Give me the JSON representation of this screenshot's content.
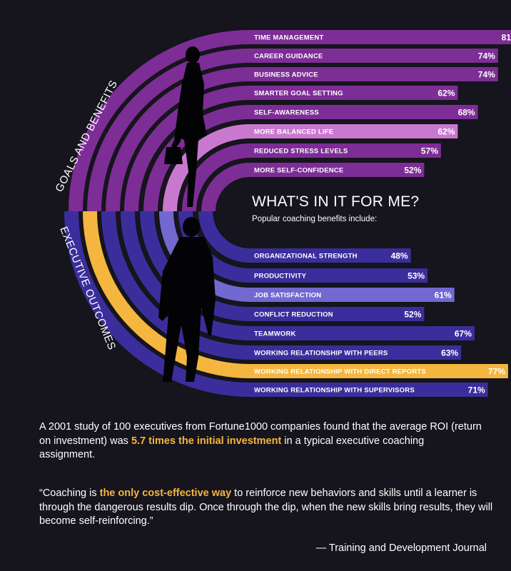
{
  "chart_data": {
    "type": "bar",
    "headline": "WHAT'S IN IT FOR ME?",
    "subheadline": "Popular coaching benefits include:",
    "value_unit": "%",
    "series": [
      {
        "name": "GOALS AND BENEFITS",
        "categories": [
          "TIME MANAGEMENT",
          "CAREER GUIDANCE",
          "BUSINESS ADVICE",
          "SMARTER GOAL SETTING",
          "SELF-AWARENESS",
          "MORE BALANCED LIFE",
          "REDUCED STRESS LEVELS",
          "MORE SELF-CONFIDENCE"
        ],
        "values": [
          81,
          74,
          74,
          62,
          68,
          62,
          57,
          52
        ],
        "highlight": "MORE BALANCED LIFE"
      },
      {
        "name": "EXECUTIVE OUTCOMES",
        "categories": [
          "ORGANIZATIONAL STRENGTH",
          "PRODUCTIVITY",
          "JOB SATISFACTION",
          "CONFLICT REDUCTION",
          "TEAMWORK",
          "WORKING RELATIONSHIP WITH PEERS",
          "WORKING RELATIONSHIP WITH DIRECT REPORTS",
          "WORKING RELATIONSHIP WITH SUPERVISORS"
        ],
        "values": [
          48,
          53,
          61,
          52,
          67,
          63,
          77,
          71
        ],
        "highlight": [
          "JOB SATISFACTION",
          "WORKING RELATIONSHIP WITH DIRECT REPORTS"
        ]
      }
    ]
  },
  "colors": {
    "background": "#16141c",
    "purple": "#7d2d96",
    "purple_highlight": "#c978cf",
    "blue": "#3b2e9c",
    "blue_highlight": "#7168d0",
    "gold": "#f4b63f",
    "silhouette": "#030305"
  },
  "study": {
    "before": "A 2001 study of 100 executives from Fortune1000 companies found that the average ROI (return on investment) was ",
    "highlight": "5.7 times the initial investment",
    "after": " in a typical executive coaching assignment."
  },
  "quote": {
    "before": "“Coaching is ",
    "highlight": "the only cost-effective way",
    "after": " to reinforce new behaviors and skills until a learner is through the dangerous results dip. Once through the dip, when the new skills bring results, they will become self-reinforcing.”"
  },
  "source": "— Training and Development Journal"
}
